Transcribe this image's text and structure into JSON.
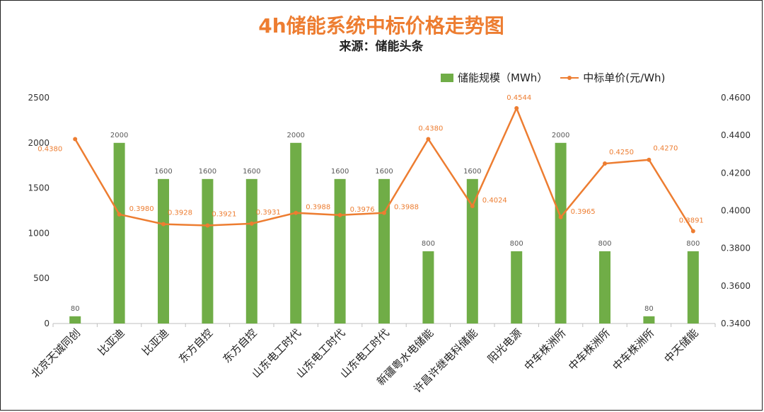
{
  "chart_data": {
    "type": "bar",
    "title": "4h储能系统中标价格走势图",
    "subtitle": "来源：储能头条",
    "categories": [
      "北京天诚同创",
      "比亚迪",
      "比亚迪",
      "东方自控",
      "东方自控",
      "山东电工时代",
      "山东电工时代",
      "山东电工时代",
      "新疆粤水电储能",
      "许昌许继电科储能",
      "阳光电源",
      "中车株洲所",
      "中车株洲所",
      "中车株洲所",
      "中天储能"
    ],
    "series": [
      {
        "name": "储能规模（MWh）",
        "type": "bar",
        "axis": "left",
        "color": "#70AD47",
        "values": [
          80,
          2000,
          1600,
          1600,
          1600,
          2000,
          1600,
          1600,
          800,
          1600,
          800,
          2000,
          800,
          80,
          800
        ]
      },
      {
        "name": "中标单价(元/Wh)",
        "type": "line",
        "axis": "right",
        "color": "#ED7D31",
        "values": [
          0.438,
          0.398,
          0.3928,
          0.3921,
          0.3931,
          0.3988,
          0.3976,
          0.3988,
          0.438,
          0.4024,
          0.4544,
          0.3965,
          0.425,
          0.427,
          0.3891
        ]
      }
    ],
    "line_labels": [
      "0.4380",
      "0.3980",
      "0.3928",
      "0.3921",
      "0.3931",
      "0.3988",
      "0.3976",
      "0.3988",
      "0.4380",
      "0.4024",
      "0.4544",
      "0.3965",
      "0.4250",
      "0.4270",
      "0.3891"
    ],
    "y_left": {
      "min": 0,
      "max": 2500,
      "ticks": [
        "0",
        "500",
        "1000",
        "1500",
        "2000",
        "2500"
      ]
    },
    "y_right": {
      "min": 0.34,
      "max": 0.46,
      "ticks": [
        "0.3400",
        "0.3600",
        "0.3800",
        "0.4000",
        "0.4200",
        "0.4400",
        "0.4600"
      ]
    },
    "legend_position": "top-right",
    "grid": false
  }
}
